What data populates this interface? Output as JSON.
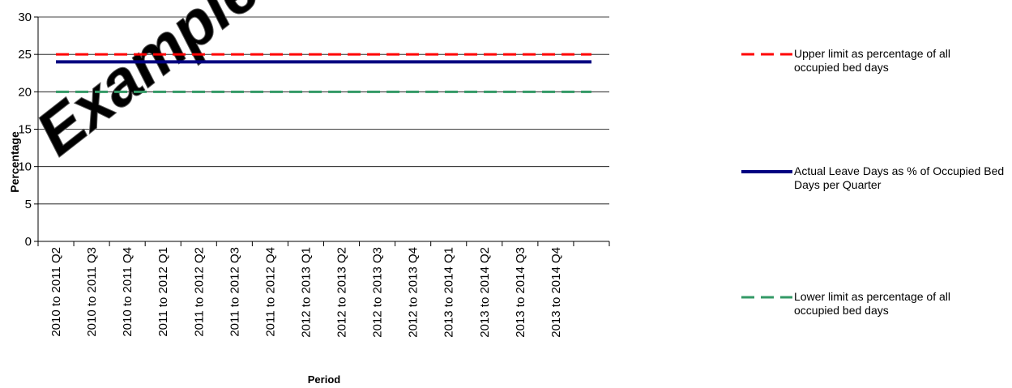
{
  "chart_data": {
    "type": "line",
    "x_label": "Period",
    "y_label": "Percentage",
    "watermark": "Example",
    "categories": [
      "2010 to 2011 Q2",
      "2010 to 2011 Q3",
      "2010 to 2011 Q4",
      "2011 to 2012 Q1",
      "2011 to 2012 Q2",
      "2011 to 2012 Q3",
      "2011 to 2012 Q4",
      "2012 to 2013 Q1",
      "2012 to 2013 Q2",
      "2012 to 2013 Q3",
      "2012 to 2013 Q4",
      "2013 to 2014 Q1",
      "2013 to 2014 Q2",
      "2013 to 2014 Q3",
      "2013 to 2014 Q4",
      null
    ],
    "series": [
      {
        "name": "Upper limit as percentage of all occupied bed days",
        "color": "#ff0000",
        "dashed": true,
        "values": [
          25,
          25,
          25,
          25,
          25,
          25,
          25,
          25,
          25,
          25,
          25,
          25,
          25,
          25,
          25,
          25
        ]
      },
      {
        "name": "Actual Leave Days as % of Occupied Bed Days per Quarter",
        "color": "#000080",
        "dashed": false,
        "values": [
          24,
          24,
          24,
          24,
          24,
          24,
          24,
          24,
          24,
          24,
          24,
          24,
          24,
          24,
          24,
          24
        ]
      },
      {
        "name": "Lower limit as percentage of all occupied bed days",
        "color": "#339966",
        "dashed": true,
        "values": [
          20,
          20,
          20,
          20,
          20,
          20,
          20,
          20,
          20,
          20,
          20,
          20,
          20,
          20,
          20,
          20
        ]
      }
    ],
    "ylim": [
      0,
      30
    ],
    "yticks": [
      0,
      5,
      10,
      15,
      20,
      25,
      30
    ],
    "grid": true
  }
}
